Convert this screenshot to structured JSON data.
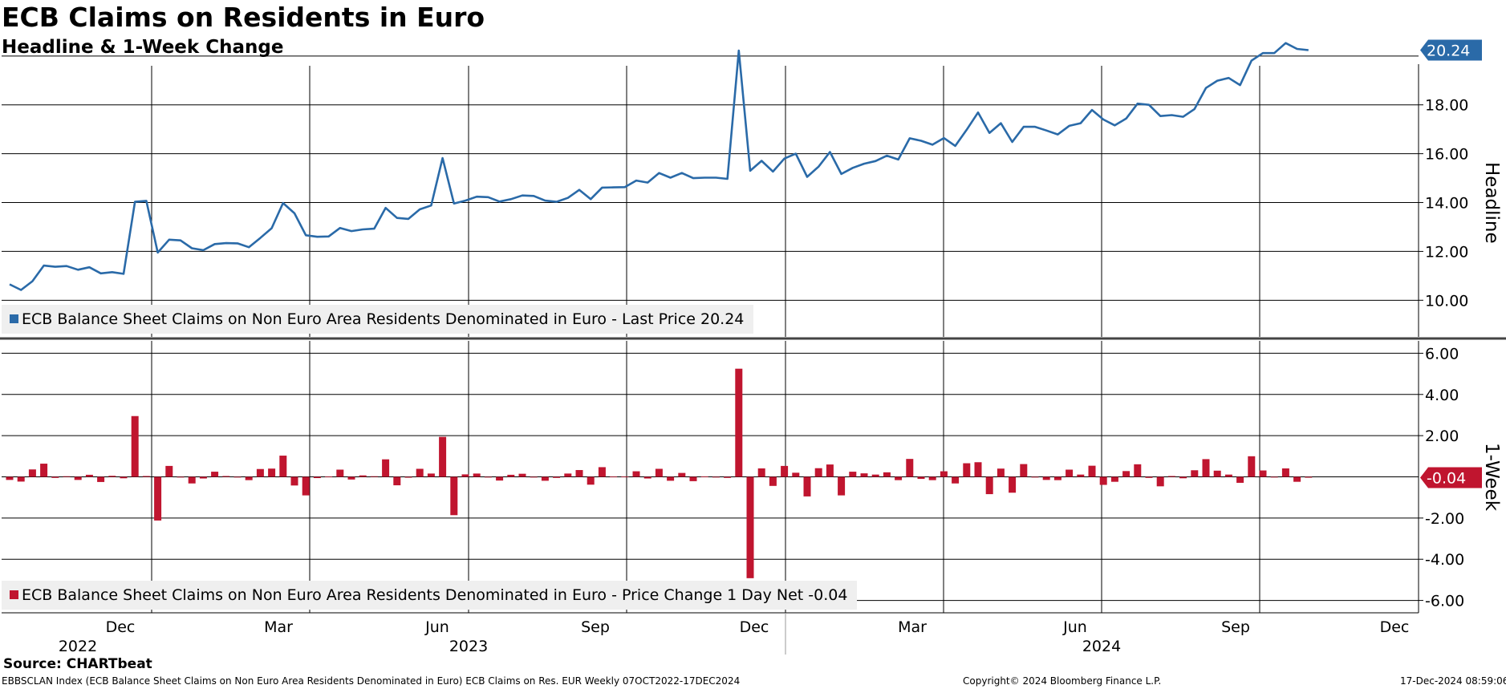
{
  "chart_data": {
    "type": "line",
    "title": "ECB Claims on Residents in Euro",
    "subtitle": "Headline & 1-Week Change",
    "x_month_labels": [
      "Dec",
      "Mar",
      "Jun",
      "Sep",
      "Dec",
      "Mar",
      "Jun",
      "Sep",
      "Dec"
    ],
    "x_year_labels": [
      "2022",
      "2023",
      "2024"
    ],
    "panels": [
      {
        "name": "headline",
        "type": "line",
        "axis_label": "Headline",
        "ylim": [
          8.5,
          19.6
        ],
        "yticks": [
          "10.00",
          "12.00",
          "14.00",
          "16.00",
          "18.00"
        ],
        "legend": "ECB Balance Sheet Claims on Non Euro Area Residents Denominated in Euro - Last Price 20.24",
        "last_value_label": "20.24",
        "color": "#2a6aa8",
        "series": {
          "name": "ECB Balance Sheet Claims on Non Euro Area Residents Denominated in Euro",
          "values": [
            10.65,
            10.42,
            10.78,
            11.42,
            11.37,
            11.4,
            11.25,
            11.35,
            11.1,
            11.15,
            11.08,
            14.03,
            14.07,
            11.95,
            12.48,
            12.45,
            12.13,
            12.05,
            12.3,
            12.34,
            12.33,
            12.17,
            12.55,
            12.95,
            13.98,
            13.56,
            12.66,
            12.6,
            12.61,
            12.96,
            12.83,
            12.9,
            12.93,
            13.78,
            13.37,
            13.33,
            13.72,
            13.88,
            15.82,
            13.96,
            14.08,
            14.24,
            14.22,
            14.04,
            14.14,
            14.29,
            14.27,
            14.08,
            14.03,
            14.19,
            14.52,
            14.14,
            14.61,
            14.62,
            14.63,
            14.9,
            14.82,
            15.21,
            15.02,
            15.21,
            15.0,
            15.02,
            15.02,
            14.97,
            20.22,
            15.3,
            15.71,
            15.27,
            15.8,
            16.0,
            15.05,
            15.47,
            16.07,
            15.17,
            15.42,
            15.59,
            15.7,
            15.92,
            15.76,
            16.63,
            16.53,
            16.37,
            16.64,
            16.32,
            16.98,
            17.69,
            16.85,
            17.25,
            16.48,
            17.1,
            17.1,
            16.95,
            16.79,
            17.14,
            17.25,
            17.79,
            17.4,
            17.16,
            17.44,
            18.05,
            18.0,
            17.54,
            17.58,
            17.51,
            17.83,
            18.69,
            18.99,
            19.1,
            18.81,
            19.81,
            20.12,
            20.12,
            20.53,
            20.29,
            20.24
          ]
        }
      },
      {
        "name": "1-week",
        "type": "bar",
        "axis_label": "1-Week",
        "ylim": [
          -6.6,
          6.6
        ],
        "yticks": [
          "6.00",
          "4.00",
          "2.00",
          "-2.00",
          "-4.00",
          "-6.00"
        ],
        "legend": "ECB Balance Sheet Claims on Non Euro Area Residents Denominated in Euro - Price Change 1 Day Net -0.04",
        "last_value_label": "-0.04",
        "color": "#c0152f",
        "series": {
          "name": "Price Change 1 Day Net",
          "values": [
            -0.15,
            -0.23,
            0.36,
            0.64,
            -0.05,
            0.03,
            -0.15,
            0.1,
            -0.25,
            0.05,
            -0.07,
            2.95,
            0.04,
            -2.12,
            0.53,
            -0.03,
            -0.32,
            -0.08,
            0.25,
            0.04,
            -0.01,
            -0.16,
            0.38,
            0.4,
            1.03,
            -0.42,
            -0.9,
            -0.06,
            0.01,
            0.35,
            -0.13,
            0.07,
            0.03,
            0.85,
            -0.41,
            -0.04,
            0.39,
            0.16,
            1.94,
            -1.86,
            0.12,
            0.16,
            -0.02,
            -0.18,
            0.1,
            0.15,
            -0.02,
            -0.19,
            -0.05,
            0.16,
            0.33,
            -0.38,
            0.47,
            0.01,
            0.01,
            0.27,
            -0.08,
            0.39,
            -0.19,
            0.19,
            -0.21,
            0.02,
            0.0,
            -0.05,
            5.25,
            -4.92,
            0.41,
            -0.44,
            0.53,
            0.2,
            -0.95,
            0.42,
            0.6,
            -0.9,
            0.25,
            0.17,
            0.11,
            0.22,
            -0.16,
            0.87,
            -0.1,
            -0.16,
            0.27,
            -0.32,
            0.66,
            0.71,
            -0.84,
            0.4,
            -0.77,
            0.62,
            0.0,
            -0.15,
            -0.16,
            0.35,
            0.11,
            0.54,
            -0.39,
            -0.24,
            0.28,
            0.61,
            -0.05,
            -0.46,
            0.04,
            -0.07,
            0.32,
            0.86,
            0.3,
            0.11,
            -0.29,
            1.0,
            0.31,
            0.0,
            0.41,
            -0.24,
            -0.04
          ]
        }
      }
    ]
  },
  "footer": {
    "source": "Source: CHARTbeat",
    "description": "EBBSCLAN Index (ECB Balance Sheet Claims on Non Euro Area Residents Denominated in Euro) ECB Claims on Res. EUR  Weekly 07OCT2022-17DEC2024",
    "copyright": "Copyright© 2024 Bloomberg Finance L.P.",
    "date": "17-Dec-2024 08:59:06"
  },
  "colors": {
    "headline_line": "#2a6aa8",
    "bars": "#c0152f",
    "legend_bg": "#efefef"
  }
}
